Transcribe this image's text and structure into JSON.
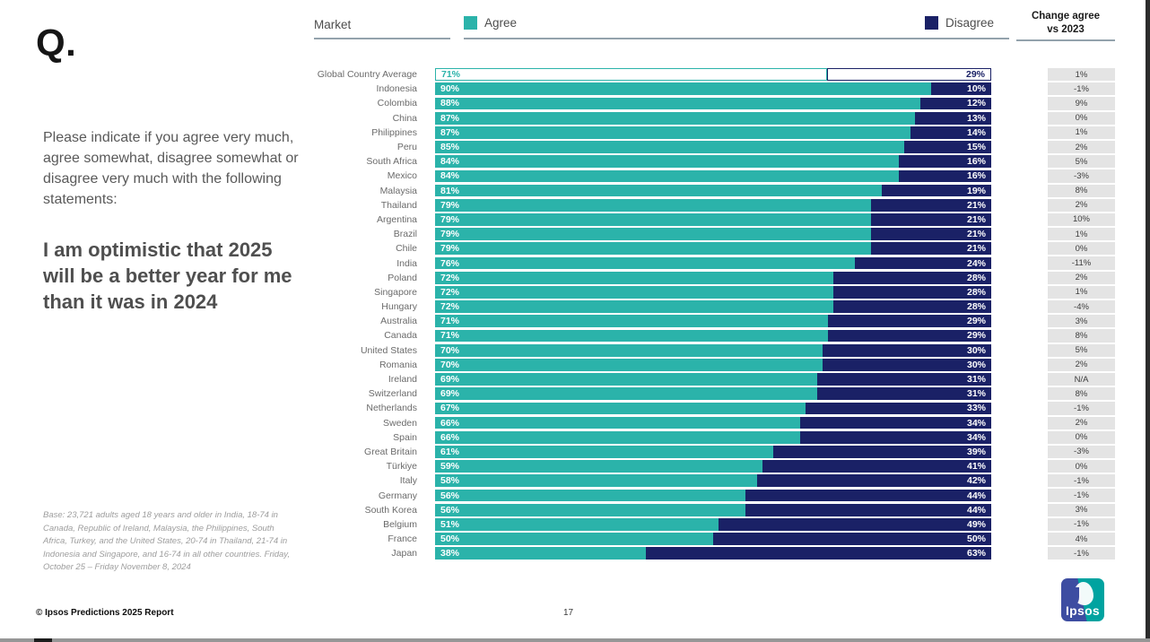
{
  "slide": {
    "q_label": "Q.",
    "intro": "Please indicate if you agree very much, agree somewhat, disagree somewhat or disagree very much with the following statements:",
    "statement": "I am optimistic that 2025 will be a better year for me than it was in 2024",
    "base_note": "Base: 23,721 adults aged 18 years and older in India, 18-74 in Canada, Republic of Ireland, Malaysia, the Philippines, South Africa, Turkey, and the United States, 20-74 in Thailand, 21-74 in Indonesia and Singapore, and 16-74 in all other countries. Friday, October 25 – Friday November 8, 2024",
    "footer_copyright": "© Ipsos Predictions 2025 Report",
    "page_number": "17",
    "logo_text": "Ipsos"
  },
  "header": {
    "market_label": "Market",
    "agree_label": "Agree",
    "disagree_label": "Disagree",
    "change_label_line1": "Change agree",
    "change_label_line2": "vs 2023"
  },
  "colors": {
    "agree": "#2bb3aa",
    "disagree": "#1a2166",
    "change_bg": "#e4e4e4"
  },
  "chart_data": {
    "type": "bar",
    "orientation": "horizontal",
    "stacked": true,
    "unit": "%",
    "series": [
      "Agree",
      "Disagree"
    ],
    "columns": [
      "Market",
      "Agree",
      "Disagree",
      "Change agree vs 2023"
    ],
    "legend_position": "top",
    "xlim": [
      0,
      100
    ],
    "rows": [
      {
        "market": "Global Country Average",
        "agree": 71,
        "disagree": 29,
        "change": "1%",
        "highlight": true
      },
      {
        "market": "Indonesia",
        "agree": 90,
        "disagree": 10,
        "change": "-1%"
      },
      {
        "market": "Colombia",
        "agree": 88,
        "disagree": 12,
        "change": "9%"
      },
      {
        "market": "China",
        "agree": 87,
        "disagree": 13,
        "change": "0%"
      },
      {
        "market": "Philippines",
        "agree": 87,
        "disagree": 14,
        "change": "1%"
      },
      {
        "market": "Peru",
        "agree": 85,
        "disagree": 15,
        "change": "2%"
      },
      {
        "market": "South Africa",
        "agree": 84,
        "disagree": 16,
        "change": "5%"
      },
      {
        "market": "Mexico",
        "agree": 84,
        "disagree": 16,
        "change": "-3%"
      },
      {
        "market": "Malaysia",
        "agree": 81,
        "disagree": 19,
        "change": "8%"
      },
      {
        "market": "Thailand",
        "agree": 79,
        "disagree": 21,
        "change": "2%"
      },
      {
        "market": "Argentina",
        "agree": 79,
        "disagree": 21,
        "change": "10%"
      },
      {
        "market": "Brazil",
        "agree": 79,
        "disagree": 21,
        "change": "1%"
      },
      {
        "market": "Chile",
        "agree": 79,
        "disagree": 21,
        "change": "0%"
      },
      {
        "market": "India",
        "agree": 76,
        "disagree": 24,
        "change": "-11%"
      },
      {
        "market": "Poland",
        "agree": 72,
        "disagree": 28,
        "change": "2%"
      },
      {
        "market": "Singapore",
        "agree": 72,
        "disagree": 28,
        "change": "1%"
      },
      {
        "market": "Hungary",
        "agree": 72,
        "disagree": 28,
        "change": "-4%"
      },
      {
        "market": "Australia",
        "agree": 71,
        "disagree": 29,
        "change": "3%"
      },
      {
        "market": "Canada",
        "agree": 71,
        "disagree": 29,
        "change": "8%"
      },
      {
        "market": "United States",
        "agree": 70,
        "disagree": 30,
        "change": "5%"
      },
      {
        "market": "Romania",
        "agree": 70,
        "disagree": 30,
        "change": "2%"
      },
      {
        "market": "Ireland",
        "agree": 69,
        "disagree": 31,
        "change": "N/A"
      },
      {
        "market": "Switzerland",
        "agree": 69,
        "disagree": 31,
        "change": "8%"
      },
      {
        "market": "Netherlands",
        "agree": 67,
        "disagree": 33,
        "change": "-1%"
      },
      {
        "market": "Sweden",
        "agree": 66,
        "disagree": 34,
        "change": "2%"
      },
      {
        "market": "Spain",
        "agree": 66,
        "disagree": 34,
        "change": "0%"
      },
      {
        "market": "Great Britain",
        "agree": 61,
        "disagree": 39,
        "change": "-3%"
      },
      {
        "market": "Türkiye",
        "agree": 59,
        "disagree": 41,
        "change": "0%"
      },
      {
        "market": "Italy",
        "agree": 58,
        "disagree": 42,
        "change": "-1%"
      },
      {
        "market": "Germany",
        "agree": 56,
        "disagree": 44,
        "change": "-1%"
      },
      {
        "market": "South Korea",
        "agree": 56,
        "disagree": 44,
        "change": "3%"
      },
      {
        "market": "Belgium",
        "agree": 51,
        "disagree": 49,
        "change": "-1%"
      },
      {
        "market": "France",
        "agree": 50,
        "disagree": 50,
        "change": "4%"
      },
      {
        "market": "Japan",
        "agree": 38,
        "disagree": 63,
        "change": "-1%"
      }
    ]
  }
}
